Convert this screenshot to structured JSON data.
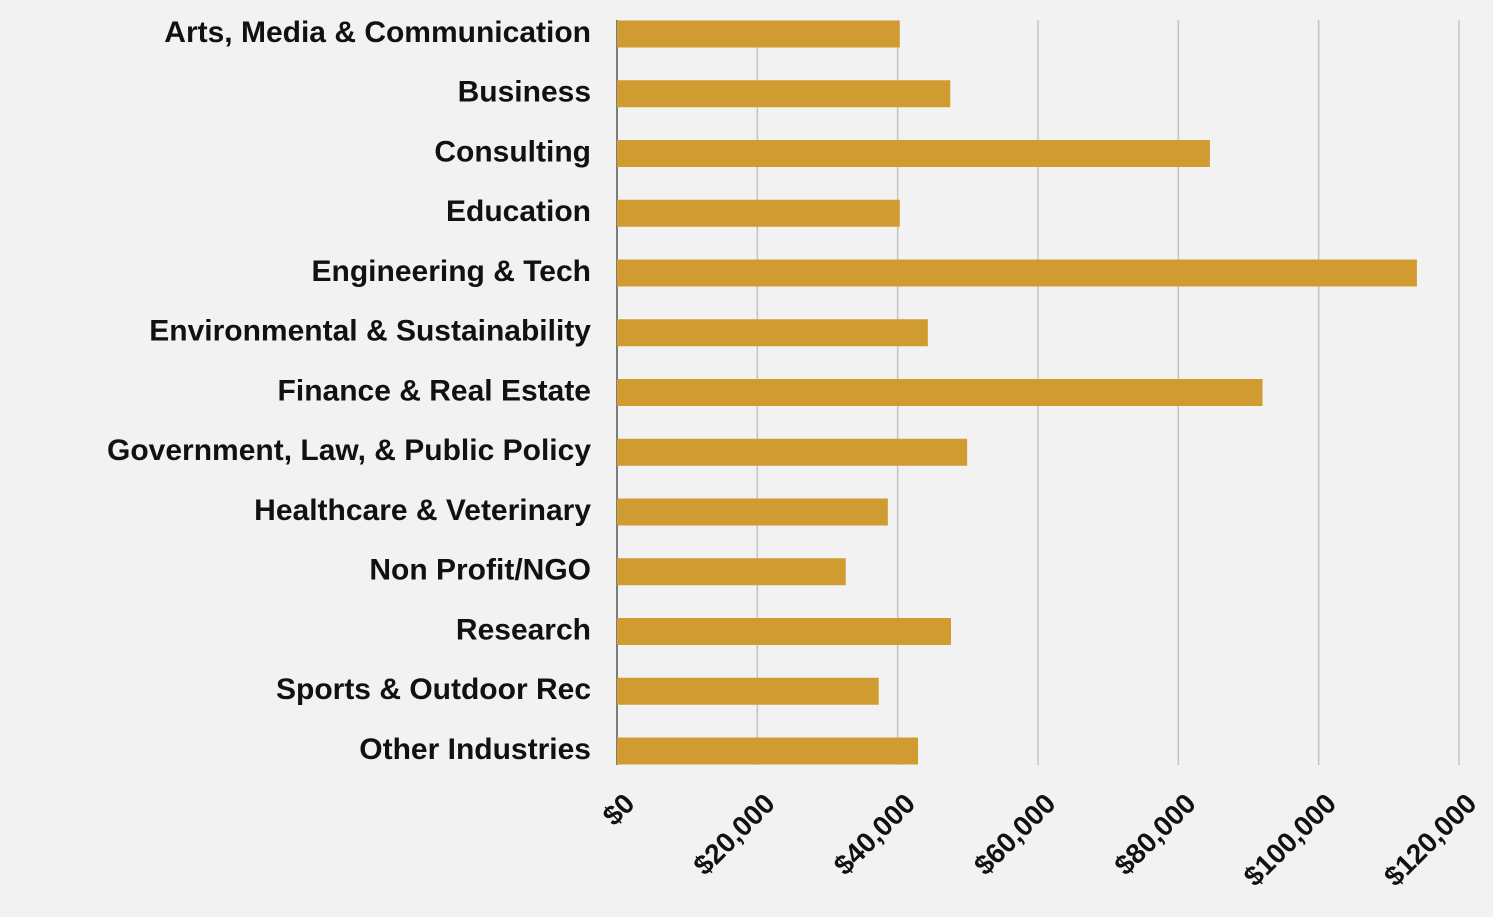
{
  "chart_data": {
    "type": "bar",
    "orientation": "horizontal",
    "categories": [
      "Arts, Media & Communication",
      "Business",
      "Consulting",
      "Education",
      "Engineering & Tech",
      "Environmental & Sustainability",
      "Finance & Real Estate",
      "Government, Law, & Public Policy",
      "Healthcare & Veterinary",
      "Non Profit/NGO",
      "Research",
      "Sports & Outdoor Rec",
      "Other Industries"
    ],
    "values": [
      40300,
      47500,
      84500,
      40300,
      114000,
      44300,
      92000,
      49900,
      38600,
      32600,
      47600,
      37300,
      42900
    ],
    "color": "#d09b30",
    "xlim": [
      0,
      120000
    ],
    "xticks": [
      {
        "value": 0,
        "label": "$0"
      },
      {
        "value": 20000,
        "label": "$20,000"
      },
      {
        "value": 40000,
        "label": "$40,000"
      },
      {
        "value": 60000,
        "label": "$60,000"
      },
      {
        "value": 80000,
        "label": "$80,000"
      },
      {
        "value": 100000,
        "label": "$100,000"
      },
      {
        "value": 120000,
        "label": "$120,000"
      }
    ],
    "grid": true
  }
}
